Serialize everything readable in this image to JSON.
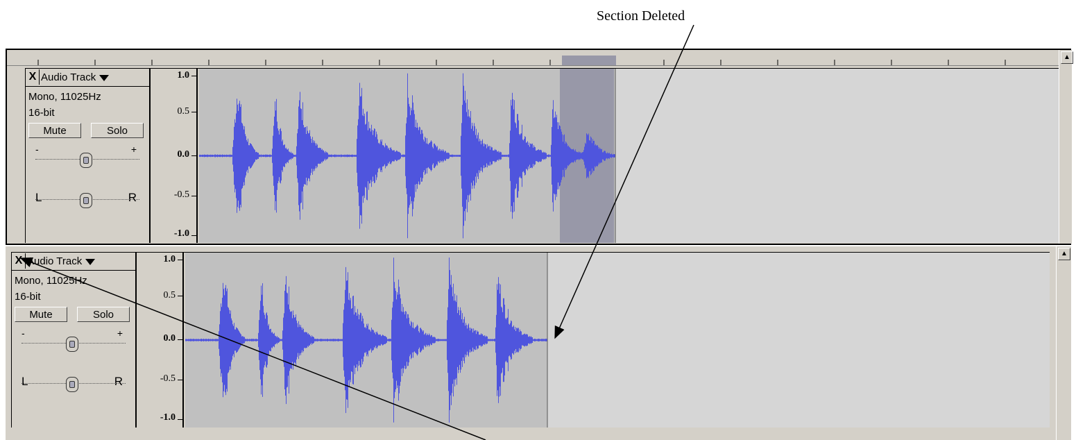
{
  "annotation": {
    "label": "Section Deleted"
  },
  "tracks": [
    {
      "name": "Audio Track",
      "close": "X",
      "info_line1": "Mono, 11025Hz",
      "info_line2": "16-bit",
      "mute_label": "Mute",
      "solo_label": "Solo",
      "gain_minus": "-",
      "gain_plus": "+",
      "pan_left": "L",
      "pan_right": "R",
      "scale": [
        "1.0",
        "0.5",
        "0.0",
        "-0.5",
        "-1.0"
      ],
      "selection": "highlighted"
    },
    {
      "name": "Audio Track",
      "close": "X",
      "info_line1": "Mono, 11025Hz",
      "info_line2": "16-bit",
      "mute_label": "Mute",
      "solo_label": "Solo",
      "gain_minus": "-",
      "gain_plus": "+",
      "pan_left": "L",
      "pan_right": "R",
      "scale": [
        "1.0",
        "0.5",
        "0.0",
        "-0.5",
        "-1.0"
      ],
      "selection": "none"
    }
  ],
  "colors": {
    "waveform": "#4f55dd",
    "waveform_fill": "#6a6ee0",
    "clip_background": "#c0c0c0",
    "selection": "#9898a8",
    "track_panel": "#d4d0c8",
    "empty_area": "#d6d6d6"
  },
  "icons": [
    "close-icon",
    "dropdown-arrow-icon",
    "scroll-up-arrow-icon",
    "slider-thumb-icon"
  ]
}
